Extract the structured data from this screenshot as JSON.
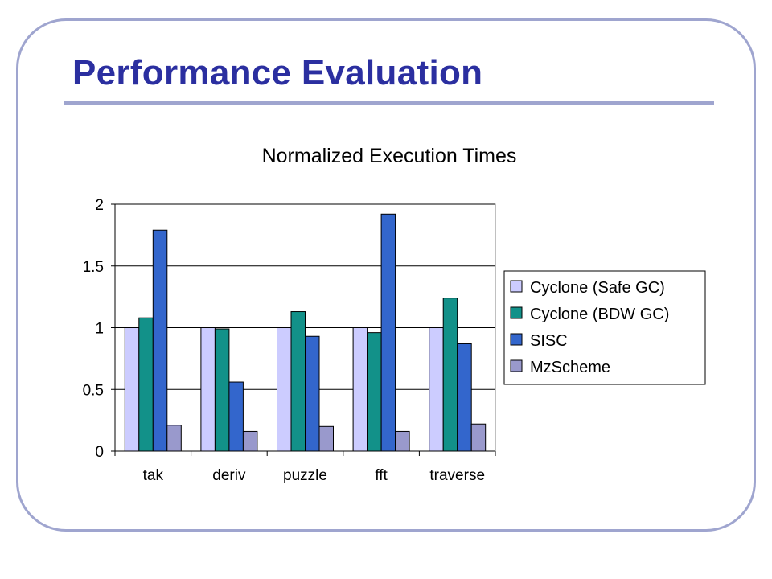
{
  "slide": {
    "title": "Performance Evaluation"
  },
  "colors": {
    "frame": "#9fa5cf",
    "title": "#2b2fa0",
    "series": [
      "#ccccff",
      "#129189",
      "#3366cc",
      "#9999cc"
    ]
  },
  "chart_data": {
    "type": "bar",
    "title": "Normalized Execution Times",
    "xlabel": "",
    "ylabel": "",
    "categories": [
      "tak",
      "deriv",
      "puzzle",
      "fft",
      "traverse"
    ],
    "series": [
      {
        "name": "Cyclone (Safe GC)",
        "values": [
          1.0,
          1.0,
          1.0,
          1.0,
          1.0
        ]
      },
      {
        "name": "Cyclone (BDW GC)",
        "values": [
          1.08,
          0.99,
          1.13,
          0.96,
          1.24
        ]
      },
      {
        "name": "SISC",
        "values": [
          1.79,
          0.56,
          0.93,
          1.92,
          0.87
        ]
      },
      {
        "name": "MzScheme",
        "values": [
          0.21,
          0.16,
          0.2,
          0.16,
          0.22
        ]
      }
    ],
    "ylim": [
      0,
      2
    ],
    "yticks": [
      "0",
      "0.5",
      "1",
      "1.5",
      "2"
    ],
    "grid": true,
    "legend": "right"
  }
}
